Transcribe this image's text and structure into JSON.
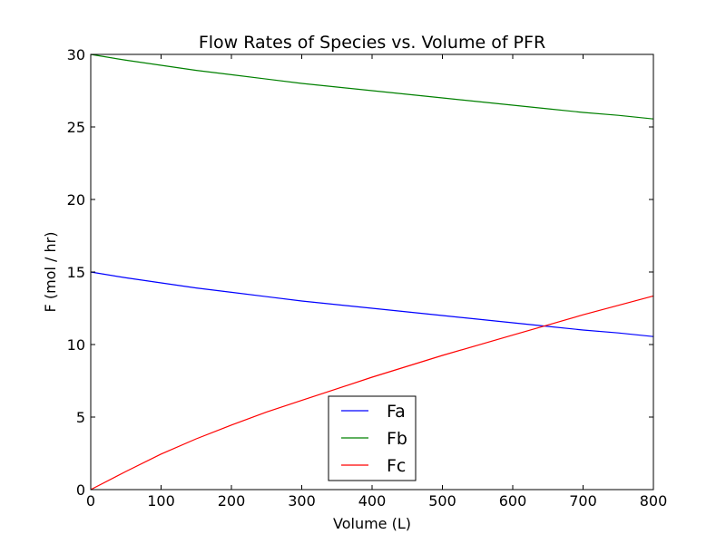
{
  "chart_data": {
    "type": "line",
    "title": "Flow Rates of Species  vs.  Volume of PFR",
    "xlabel": "Volume (L)",
    "ylabel": "F (mol / hr)",
    "xlim": [
      0,
      800
    ],
    "ylim": [
      0,
      30
    ],
    "xticks": [
      0,
      100,
      200,
      300,
      400,
      500,
      600,
      700,
      800
    ],
    "yticks": [
      0,
      5,
      10,
      15,
      20,
      25,
      30
    ],
    "grid": false,
    "legend_position": "bottom-center",
    "x": [
      0,
      50,
      100,
      150,
      200,
      250,
      300,
      350,
      400,
      450,
      500,
      550,
      600,
      650,
      700,
      750,
      800
    ],
    "series": [
      {
        "name": "Fa",
        "color": "#0000ff",
        "values": [
          15.0,
          14.6,
          14.25,
          13.9,
          13.6,
          13.3,
          13.0,
          12.75,
          12.5,
          12.25,
          12.0,
          11.75,
          11.5,
          11.25,
          11.0,
          10.8,
          10.55
        ]
      },
      {
        "name": "Fb",
        "color": "#008000",
        "values": [
          30.0,
          29.6,
          29.25,
          28.9,
          28.6,
          28.3,
          28.0,
          27.75,
          27.5,
          27.25,
          27.0,
          26.75,
          26.5,
          26.25,
          26.0,
          25.8,
          25.55
        ]
      },
      {
        "name": "Fc",
        "color": "#ff0000",
        "values": [
          0.0,
          1.25,
          2.45,
          3.5,
          4.45,
          5.35,
          6.15,
          6.95,
          7.75,
          8.5,
          9.25,
          9.95,
          10.65,
          11.35,
          12.05,
          12.7,
          13.35
        ]
      }
    ]
  }
}
